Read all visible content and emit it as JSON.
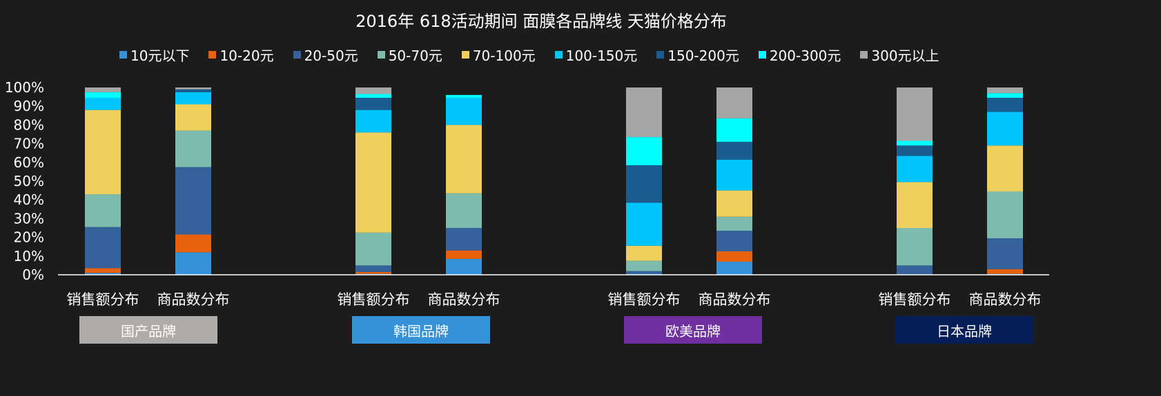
{
  "chart_data": {
    "type": "bar",
    "stacked": "percent",
    "title": "2016年 618活动期间 面膜各品牌线 天猫价格分布",
    "legend_position": "top",
    "grid": false,
    "ylim": [
      0,
      100
    ],
    "y_ticks": [
      "0%",
      "10%",
      "20%",
      "30%",
      "40%",
      "50%",
      "60%",
      "70%",
      "80%",
      "90%",
      "100%"
    ],
    "categories": [
      "销售额分布",
      "商品数分布",
      "销售额分布",
      "商品数分布",
      "销售额分布",
      "商品数分布",
      "销售额分布",
      "商品数分布"
    ],
    "groups": [
      {
        "label": "国产品牌",
        "color": "#aeaba9"
      },
      {
        "label": "韩国品牌",
        "color": "#3591d8"
      },
      {
        "label": "欧美品牌",
        "color": "#7030a0"
      },
      {
        "label": "日本品牌",
        "color": "#041e59"
      }
    ],
    "series": [
      {
        "name": "10元以下",
        "color": "#3591d8",
        "values": [
          1,
          12,
          0.5,
          8.5,
          0.5,
          7,
          0,
          0.5
        ]
      },
      {
        "name": "10-20元",
        "color": "#e8620e",
        "values": [
          2.5,
          9.5,
          1,
          4.5,
          0,
          5.5,
          0,
          2.5
        ]
      },
      {
        "name": "20-50元",
        "color": "#35629b",
        "values": [
          22,
          36,
          3.5,
          12,
          1.5,
          11,
          5,
          16.5
        ]
      },
      {
        "name": "50-70元",
        "color": "#7dbcac",
        "values": [
          17.5,
          19.5,
          17.5,
          18.5,
          5.5,
          7.5,
          20,
          25
        ]
      },
      {
        "name": "70-100元",
        "color": "#f0d05c",
        "values": [
          45,
          14,
          53.5,
          36.5,
          8,
          14,
          24.5,
          24.5
        ]
      },
      {
        "name": "100-150元",
        "color": "#00c5ff",
        "values": [
          6.5,
          6.5,
          12,
          14.5,
          23,
          16.5,
          14,
          18
        ]
      },
      {
        "name": "150-200元",
        "color": "#1a5c8e",
        "values": [
          0,
          1.5,
          6.5,
          0,
          20,
          9.5,
          5.5,
          7.5
        ]
      },
      {
        "name": "200-300元",
        "color": "#00ffff",
        "values": [
          3,
          0,
          2,
          1.5,
          15,
          12.5,
          2.5,
          2.5
        ]
      },
      {
        "name": "300元以上",
        "color": "#a6a6a6",
        "values": [
          2.5,
          1,
          3.5,
          0,
          26.5,
          16.5,
          28.5,
          3
        ]
      }
    ]
  }
}
